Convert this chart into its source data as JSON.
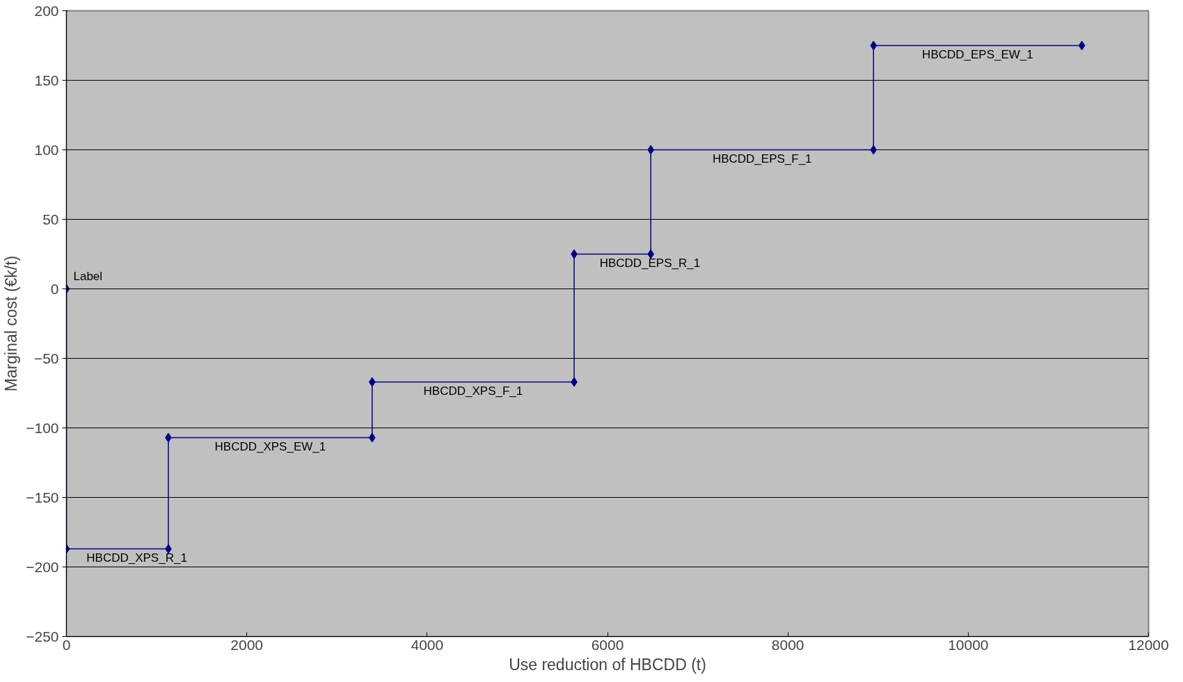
{
  "chart_data": {
    "type": "line",
    "xlabel": "Use reduction of HBCDD (t)",
    "ylabel": "Marginal cost (€k/t)",
    "x": [
      0,
      0,
      1130,
      1130,
      3390,
      3390,
      5630,
      5630,
      6480,
      6480,
      8950,
      8950,
      11260
    ],
    "series": [
      {
        "color": "#00008b",
        "values": [
          0,
          -187,
          -187,
          -107,
          -107,
          -67,
          -67,
          25,
          25,
          100,
          100,
          175,
          175
        ]
      }
    ],
    "xlim": [
      0,
      12000
    ],
    "xticks": [
      0,
      2000,
      4000,
      6000,
      8000,
      10000,
      12000
    ],
    "ylim": [
      -250,
      200
    ],
    "yticks": [
      -250,
      -200,
      -150,
      -100,
      -50,
      0,
      50,
      100,
      150,
      200
    ],
    "grid": "y",
    "marker": "diamond",
    "line_style": "solid",
    "annotations": [
      {
        "text": "Label",
        "x": 0,
        "y": 0
      },
      {
        "text": "HBCDD_XPS_R_1",
        "x": 780,
        "y": -187
      },
      {
        "text": "HBCDD_XPS_EW_1",
        "x": 2260,
        "y": -107
      },
      {
        "text": "HBCDD_XPS_F_1",
        "x": 4510,
        "y": -67
      },
      {
        "text": "HBCDD_EPS_R_1",
        "x": 6470,
        "y": 25
      },
      {
        "text": "HBCDD_EPS_F_1",
        "x": 7715,
        "y": 100
      },
      {
        "text": "HBCDD_EPS_EW_1",
        "x": 10105,
        "y": 175
      }
    ]
  }
}
